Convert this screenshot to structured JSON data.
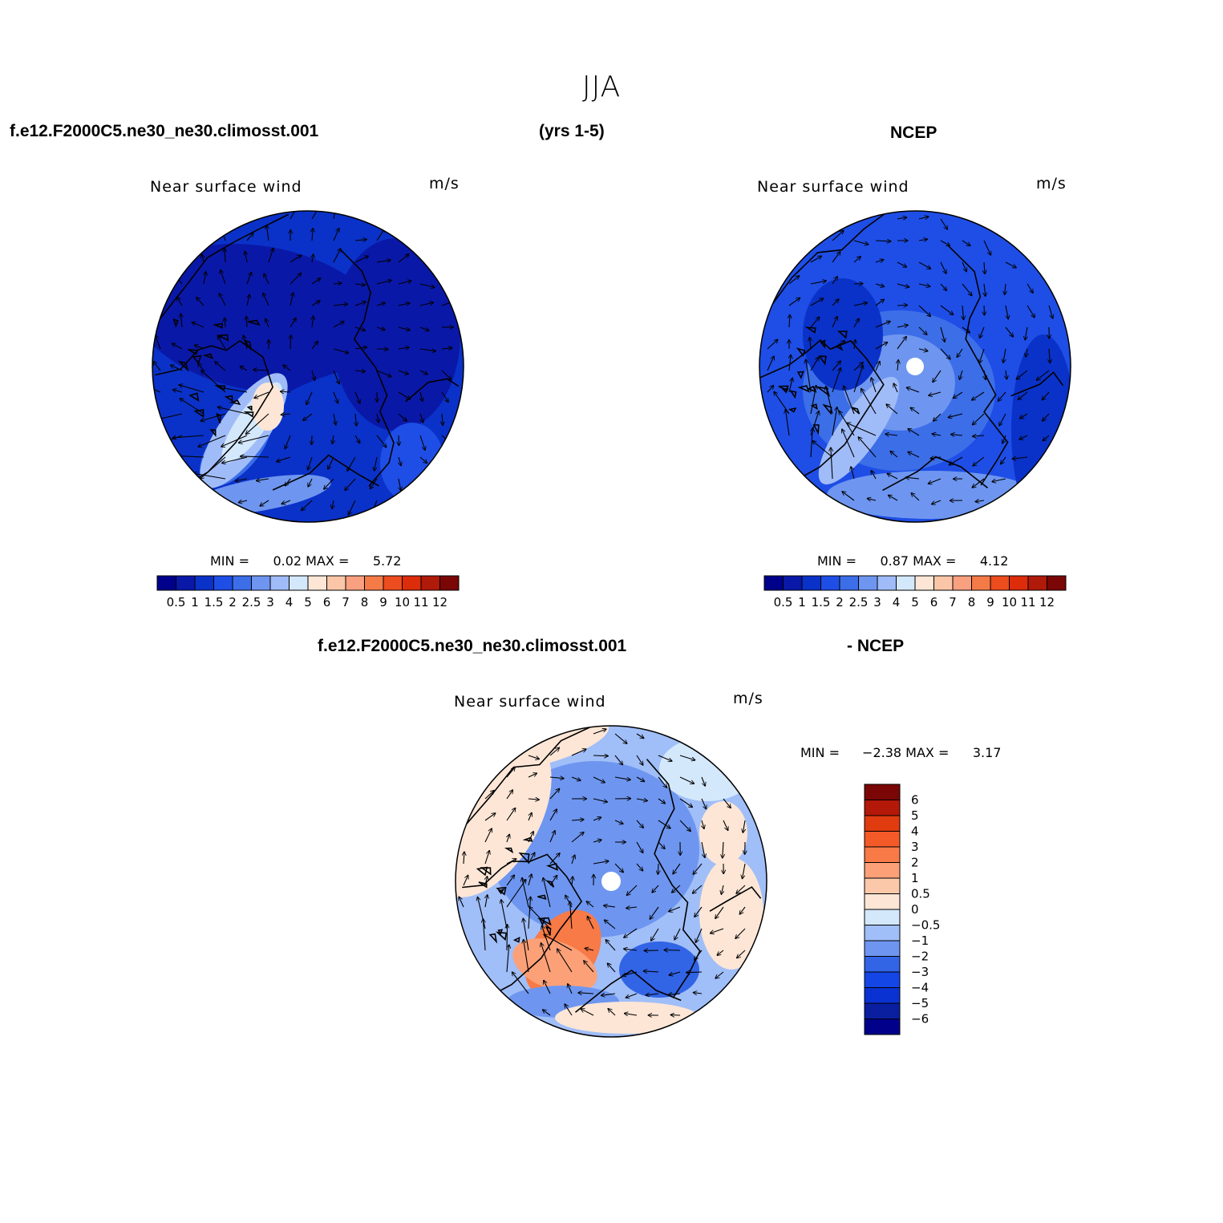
{
  "title": "JJA",
  "header": {
    "case_name": "f.e12.F2000C5.ne30_ne30.climosst.001",
    "years": "(yrs 1-5)",
    "obs_name": "NCEP"
  },
  "diff_header": {
    "case_name": "f.e12.F2000C5.ne30_ne30.climosst.001",
    "suffix": "- NCEP"
  },
  "colors": {
    "abs_scale": [
      "#00008b",
      "#0a18a8",
      "#0a32c8",
      "#1e4ee6",
      "#3c6ee8",
      "#6e96f0",
      "#a0bcf8",
      "#d4e8fc",
      "#fde6d6",
      "#fbc6a8",
      "#f8a080",
      "#f47a48",
      "#ec4c1e",
      "#dc2c0a",
      "#b01a08",
      "#7a0606"
    ],
    "diff_scale": [
      "#00008b",
      "#0a1ea0",
      "#0a32d2",
      "#1446e6",
      "#3264e6",
      "#6e96f0",
      "#a0bef8",
      "#d4e8fc",
      "#fde6d6",
      "#fcc8aa",
      "#fca078",
      "#f87a46",
      "#f45a28",
      "#e03c10",
      "#b41808",
      "#7a0606"
    ]
  },
  "chart_data": [
    {
      "type": "heatmap",
      "panel": "model",
      "title": "Near surface wind",
      "units": "m/s",
      "projection": "north polar stereographic",
      "stats": {
        "min_label": "MIN =",
        "min": "0.02",
        "max_label": "MAX =",
        "max": "5.72"
      },
      "colorbar_ticks": [
        "0.5",
        "1",
        "1.5",
        "2",
        "2.5",
        "3",
        "4",
        "5",
        "6",
        "7",
        "8",
        "9",
        "10",
        "11",
        "12"
      ],
      "field": "vector wind"
    },
    {
      "type": "heatmap",
      "panel": "obs",
      "title": "Near surface wind",
      "units": "m/s",
      "projection": "north polar stereographic",
      "stats": {
        "min_label": "MIN =",
        "min": "0.87",
        "max_label": "MAX =",
        "max": "4.12"
      },
      "colorbar_ticks": [
        "0.5",
        "1",
        "1.5",
        "2",
        "2.5",
        "3",
        "4",
        "5",
        "6",
        "7",
        "8",
        "9",
        "10",
        "11",
        "12"
      ],
      "field": "vector wind"
    },
    {
      "type": "heatmap",
      "panel": "difference",
      "title": "Near surface wind",
      "units": "m/s",
      "projection": "north polar stereographic",
      "stats": {
        "min_label": "MIN =",
        "min": "−2.38",
        "max_label": "MAX =",
        "max": "3.17"
      },
      "colorbar_ticks": [
        "6",
        "5",
        "4",
        "3",
        "2",
        "1",
        "0.5",
        "0",
        "−0.5",
        "−1",
        "−2",
        "−3",
        "−4",
        "−5",
        "−6"
      ],
      "field": "vector wind difference"
    }
  ]
}
